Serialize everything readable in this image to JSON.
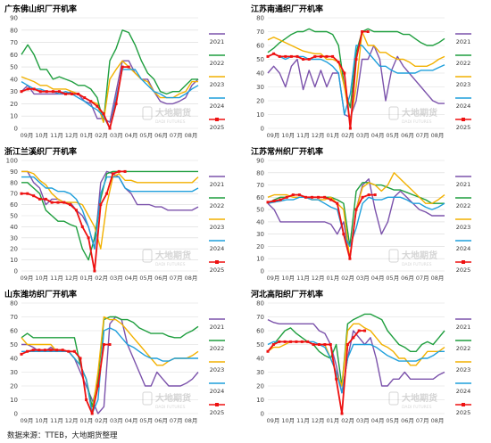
{
  "source_note": "数据来源：TTEB，大地期货整理",
  "watermark": {
    "name": "大地期货",
    "sub": "DADI FUTURES"
  },
  "colors": {
    "2021": "#7B52AB",
    "2022": "#1E9E3E",
    "2023": "#F2B100",
    "2024": "#1F9FDB",
    "2025": "#EE1111",
    "grid": "#d9d9d9",
    "axis_text": "#444444"
  },
  "chart_data": [
    {
      "type": "line",
      "title": "广东佛山织厂开机率",
      "xlabel": "",
      "ylabel": "",
      "x_ticks": [
        "09月",
        "10月",
        "11月",
        "12月",
        "01月",
        "02月",
        "03月",
        "04月",
        "05月",
        "06月",
        "07月",
        "08月"
      ],
      "y_ticks": [
        0,
        10,
        20,
        30,
        40,
        50,
        60,
        70,
        80,
        90
      ],
      "ylim": [
        0,
        90
      ],
      "grid": true,
      "legend_position": "right",
      "series": [
        {
          "name": "2021",
          "values": [
            30,
            35,
            28,
            28,
            28,
            28,
            28,
            28,
            30,
            28,
            22,
            20,
            8,
            8,
            5,
            30,
            55,
            55,
            45,
            40,
            40,
            30,
            22,
            20,
            20,
            22,
            25,
            35,
            40
          ]
        },
        {
          "name": "2022",
          "values": [
            60,
            68,
            60,
            48,
            48,
            40,
            42,
            40,
            38,
            35,
            35,
            32,
            25,
            5,
            55,
            65,
            80,
            78,
            68,
            55,
            45,
            40,
            30,
            28,
            30,
            30,
            35,
            40,
            40
          ]
        },
        {
          "name": "2023",
          "values": [
            42,
            40,
            38,
            35,
            35,
            32,
            32,
            32,
            30,
            28,
            25,
            22,
            20,
            5,
            40,
            48,
            55,
            50,
            45,
            40,
            38,
            30,
            25,
            25,
            25,
            28,
            30,
            38,
            38
          ]
        },
        {
          "name": "2024",
          "values": [
            38,
            35,
            32,
            32,
            30,
            30,
            28,
            30,
            28,
            25,
            22,
            18,
            15,
            10,
            0,
            25,
            48,
            48,
            48,
            40,
            35,
            30,
            28,
            25,
            25,
            25,
            28,
            32,
            35
          ]
        },
        {
          "name": "2025",
          "values": [
            30,
            32,
            32,
            30,
            30,
            30,
            30,
            28,
            28,
            28,
            25,
            22,
            18,
            12,
            0,
            20,
            50,
            50
          ]
        }
      ]
    },
    {
      "type": "line",
      "title": "江苏南通织厂开机率",
      "xlabel": "",
      "ylabel": "",
      "x_ticks": [
        "09月",
        "10月",
        "11月",
        "12月",
        "01月",
        "02月",
        "03月",
        "04月",
        "05月",
        "06月",
        "07月",
        "08月"
      ],
      "y_ticks": [
        0,
        10,
        20,
        30,
        40,
        50,
        60,
        70,
        80
      ],
      "ylim": [
        0,
        80
      ],
      "grid": true,
      "legend_position": "right",
      "series": [
        {
          "name": "2021",
          "values": [
            40,
            45,
            40,
            30,
            45,
            50,
            28,
            42,
            30,
            42,
            30,
            40,
            40,
            10,
            8,
            20,
            50,
            50,
            60,
            50,
            20,
            42,
            52,
            45,
            40,
            35,
            30,
            25,
            20,
            18,
            18
          ]
        },
        {
          "name": "2022",
          "values": [
            55,
            58,
            62,
            65,
            68,
            70,
            70,
            72,
            70,
            70,
            70,
            68,
            60,
            30,
            15,
            55,
            70,
            72,
            70,
            70,
            70,
            70,
            70,
            68,
            68,
            65,
            62,
            60,
            60,
            62,
            65
          ]
        },
        {
          "name": "2023",
          "values": [
            64,
            66,
            64,
            62,
            60,
            58,
            56,
            55,
            54,
            54,
            50,
            50,
            48,
            30,
            5,
            30,
            70,
            60,
            60,
            55,
            55,
            52,
            50,
            50,
            48,
            45,
            45,
            45,
            47,
            50,
            52
          ]
        },
        {
          "name": "2024",
          "values": [
            52,
            54,
            52,
            50,
            52,
            52,
            52,
            50,
            50,
            50,
            48,
            45,
            40,
            10,
            25,
            60,
            60,
            55,
            50,
            45,
            45,
            42,
            40,
            40,
            40,
            40,
            42,
            42,
            42,
            44,
            46
          ]
        },
        {
          "name": "2025",
          "values": [
            52,
            54,
            52,
            52,
            52,
            52,
            50,
            50,
            52,
            52,
            52,
            52,
            48,
            40,
            0,
            50,
            70,
            70
          ]
        }
      ]
    },
    {
      "type": "line",
      "title": "浙江兰溪织厂开机率",
      "xlabel": "",
      "ylabel": "",
      "x_ticks": [
        "09月",
        "10月",
        "11月",
        "12月",
        "01月",
        "02月",
        "03月",
        "04月",
        "05月",
        "06月",
        "07月",
        "08月"
      ],
      "y_ticks": [
        0,
        10,
        20,
        30,
        40,
        50,
        60,
        70,
        80,
        90,
        100
      ],
      "ylim": [
        0,
        100
      ],
      "grid": true,
      "legend_position": "right",
      "series": [
        {
          "name": "2021",
          "values": [
            90,
            90,
            80,
            75,
            60,
            65,
            65,
            62,
            62,
            55,
            50,
            40,
            20,
            80,
            90,
            88,
            85,
            75,
            70,
            60,
            60,
            60,
            58,
            58,
            55,
            55,
            55,
            55,
            55,
            58
          ]
        },
        {
          "name": "2022",
          "values": [
            80,
            80,
            75,
            70,
            55,
            50,
            45,
            45,
            42,
            40,
            20,
            10,
            30,
            65,
            88,
            90,
            90,
            90,
            90,
            90,
            90,
            90,
            90,
            90,
            90,
            90,
            90,
            90,
            90,
            90
          ]
        },
        {
          "name": "2023",
          "values": [
            90,
            90,
            88,
            82,
            78,
            70,
            65,
            62,
            62,
            62,
            60,
            50,
            40,
            20,
            60,
            85,
            88,
            82,
            82,
            80,
            80,
            80,
            80,
            80,
            80,
            80,
            80,
            80,
            80,
            85
          ]
        },
        {
          "name": "2024",
          "values": [
            85,
            85,
            85,
            80,
            75,
            75,
            72,
            72,
            70,
            65,
            55,
            40,
            20,
            70,
            85,
            85,
            85,
            75,
            72,
            72,
            72,
            72,
            72,
            72,
            72,
            72,
            72,
            72,
            72,
            75
          ]
        },
        {
          "name": "2025",
          "values": [
            70,
            70,
            68,
            65,
            65,
            62,
            62,
            62,
            60,
            55,
            40,
            30,
            0,
            60,
            70,
            88,
            90,
            90
          ]
        }
      ]
    },
    {
      "type": "line",
      "title": "江苏常州织厂开机率",
      "xlabel": "",
      "ylabel": "",
      "x_ticks": [
        "09月",
        "10月",
        "11月",
        "12月",
        "01月",
        "02月",
        "03月",
        "04月",
        "05月",
        "06月",
        "07月",
        "08月"
      ],
      "y_ticks": [
        0,
        10,
        20,
        30,
        40,
        50,
        60,
        70,
        80,
        90
      ],
      "ylim": [
        0,
        90
      ],
      "grid": true,
      "legend_position": "right",
      "series": [
        {
          "name": "2021",
          "values": [
            55,
            50,
            40,
            40,
            40,
            40,
            40,
            40,
            40,
            40,
            38,
            30,
            40,
            10,
            50,
            70,
            75,
            50,
            30,
            40,
            60,
            65,
            60,
            55,
            50,
            48,
            45,
            45,
            45
          ]
        },
        {
          "name": "2022",
          "values": [
            55,
            58,
            60,
            60,
            62,
            62,
            60,
            60,
            60,
            60,
            60,
            58,
            55,
            20,
            65,
            72,
            72,
            70,
            70,
            68,
            66,
            66,
            64,
            62,
            60,
            58,
            55,
            55,
            55
          ]
        },
        {
          "name": "2023",
          "values": [
            60,
            62,
            62,
            62,
            60,
            60,
            60,
            58,
            58,
            58,
            60,
            55,
            50,
            10,
            50,
            68,
            72,
            70,
            65,
            70,
            80,
            75,
            70,
            65,
            60,
            55,
            55,
            58,
            62
          ]
        },
        {
          "name": "2024",
          "values": [
            55,
            56,
            57,
            58,
            58,
            60,
            60,
            58,
            58,
            55,
            52,
            50,
            30,
            20,
            35,
            55,
            60,
            58,
            58,
            60,
            60,
            60,
            58,
            55,
            55,
            52,
            50,
            52,
            55
          ]
        },
        {
          "name": "2025",
          "values": [
            56,
            57,
            58,
            60,
            62,
            62,
            60,
            60,
            60,
            60,
            58,
            55,
            30,
            10,
            50,
            60,
            62,
            62
          ]
        }
      ]
    },
    {
      "type": "line",
      "title": "山东潍坊织厂开机率",
      "xlabel": "",
      "ylabel": "",
      "x_ticks": [
        "09月",
        "10月",
        "11月",
        "12月",
        "01月",
        "02月",
        "03月",
        "04月",
        "05月",
        "06月",
        "07月",
        "08月"
      ],
      "y_ticks": [
        0,
        10,
        20,
        30,
        40,
        50,
        60,
        70,
        80
      ],
      "ylim": [
        0,
        80
      ],
      "grid": true,
      "legend_position": "right",
      "series": [
        {
          "name": "2021",
          "values": [
            50,
            50,
            48,
            45,
            45,
            48,
            45,
            45,
            45,
            40,
            30,
            20,
            10,
            0,
            5,
            65,
            70,
            68,
            50,
            40,
            30,
            20,
            20,
            30,
            25,
            20,
            20,
            20,
            22,
            25,
            30
          ]
        },
        {
          "name": "2022",
          "values": [
            55,
            58,
            55,
            55,
            55,
            55,
            55,
            55,
            55,
            55,
            35,
            25,
            5,
            25,
            68,
            70,
            70,
            68,
            68,
            66,
            62,
            60,
            58,
            58,
            58,
            56,
            55,
            55,
            58,
            60,
            63
          ]
        },
        {
          "name": "2023",
          "values": [
            55,
            50,
            50,
            50,
            50,
            50,
            45,
            45,
            45,
            40,
            35,
            25,
            0,
            30,
            70,
            68,
            68,
            65,
            60,
            55,
            50,
            45,
            40,
            35,
            35,
            38,
            40,
            40,
            40,
            42,
            45
          ]
        },
        {
          "name": "2024",
          "values": [
            45,
            45,
            45,
            45,
            45,
            45,
            45,
            45,
            45,
            40,
            35,
            25,
            0,
            10,
            60,
            62,
            60,
            55,
            50,
            48,
            45,
            42,
            40,
            40,
            38,
            38,
            40,
            40,
            40,
            40,
            40
          ]
        },
        {
          "name": "2025",
          "values": [
            43,
            45,
            46,
            46,
            46,
            46,
            46,
            46,
            45,
            45,
            40,
            10,
            0,
            20,
            50,
            50
          ]
        }
      ]
    },
    {
      "type": "line",
      "title": "河北高阳织厂开机率",
      "xlabel": "",
      "ylabel": "",
      "x_ticks": [
        "09月",
        "10月",
        "11月",
        "12月",
        "01月",
        "02月",
        "03月",
        "04月",
        "05月",
        "06月",
        "07月",
        "08月"
      ],
      "y_ticks": [
        0,
        10,
        20,
        30,
        40,
        50,
        60,
        70,
        80
      ],
      "ylim": [
        0,
        80
      ],
      "grid": true,
      "legend_position": "right",
      "series": [
        {
          "name": "2021",
          "values": [
            68,
            66,
            65,
            65,
            65,
            65,
            65,
            65,
            65,
            60,
            58,
            50,
            35,
            15,
            40,
            60,
            55,
            50,
            55,
            40,
            20,
            20,
            25,
            25,
            30,
            25,
            25,
            25,
            25,
            25,
            28,
            30
          ]
        },
        {
          "name": "2022",
          "values": [
            45,
            50,
            55,
            60,
            62,
            58,
            55,
            52,
            50,
            45,
            42,
            40,
            50,
            20,
            65,
            68,
            70,
            72,
            72,
            70,
            68,
            60,
            55,
            50,
            48,
            45,
            45,
            50,
            52,
            50,
            55,
            60
          ]
        },
        {
          "name": "2023",
          "values": [
            45,
            48,
            48,
            50,
            52,
            52,
            52,
            52,
            50,
            50,
            50,
            40,
            30,
            20,
            60,
            65,
            65,
            62,
            60,
            55,
            50,
            48,
            45,
            40,
            40,
            35,
            35,
            40,
            45,
            45,
            45,
            48
          ]
        },
        {
          "name": "2024",
          "values": [
            50,
            52,
            52,
            52,
            52,
            52,
            52,
            52,
            52,
            50,
            48,
            40,
            30,
            15,
            40,
            50,
            50,
            50,
            50,
            48,
            45,
            42,
            40,
            38,
            38,
            38,
            38,
            40,
            40,
            42,
            45,
            45
          ]
        },
        {
          "name": "2025",
          "values": [
            45,
            50,
            52,
            52,
            52,
            52,
            52,
            52,
            50,
            50,
            50,
            50,
            25,
            0,
            50,
            55,
            60,
            60
          ]
        }
      ]
    }
  ]
}
